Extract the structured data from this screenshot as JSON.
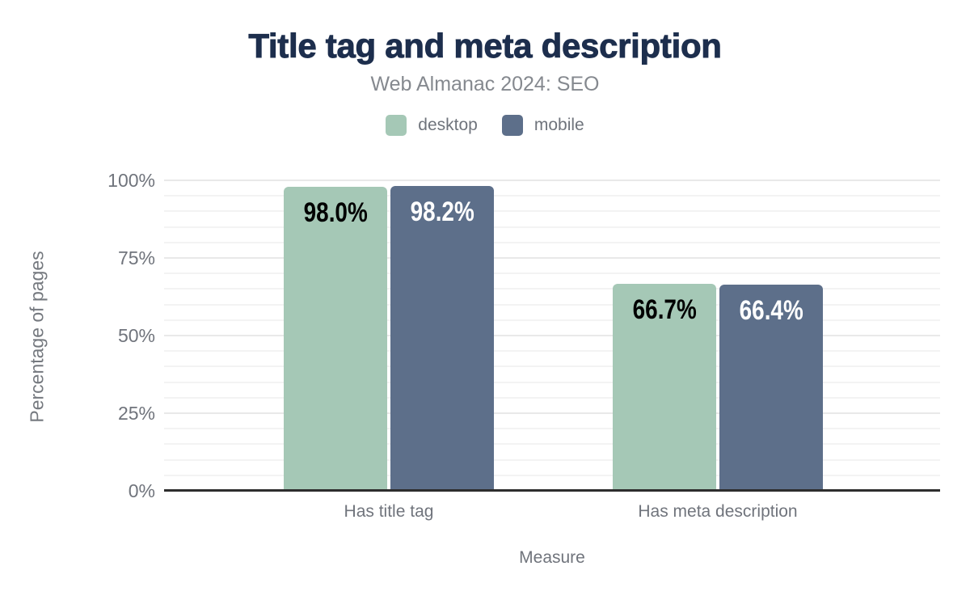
{
  "page": {
    "background": "#ffffff"
  },
  "chart_data": {
    "type": "bar",
    "title": "Title tag and meta description",
    "subtitle": "Web Almanac 2024: SEO",
    "xlabel": "Measure",
    "ylabel": "Percentage of pages",
    "categories": [
      "Has title tag",
      "Has meta description"
    ],
    "series": [
      {
        "name": "desktop",
        "color": "#a5c8b6",
        "label_color": "#000000",
        "values": [
          98.0,
          66.7
        ],
        "labels": [
          "98.0%",
          "66.7%"
        ]
      },
      {
        "name": "mobile",
        "color": "#5d6f8a",
        "label_color": "#ffffff",
        "values": [
          98.2,
          66.4
        ],
        "labels": [
          "98.2%",
          "66.4%"
        ]
      }
    ],
    "ylim": [
      0,
      100
    ],
    "yticks": [
      0,
      25,
      50,
      75,
      100
    ],
    "ytick_labels": [
      "0%",
      "25%",
      "50%",
      "75%",
      "100%"
    ],
    "grid": {
      "on": true,
      "minor_step": 5,
      "major_step": 25
    },
    "legend_position": "top",
    "title_color": "#1d2e4d",
    "axis_text_color": "#70747c",
    "axis_line_color": "#2d2d2d"
  }
}
